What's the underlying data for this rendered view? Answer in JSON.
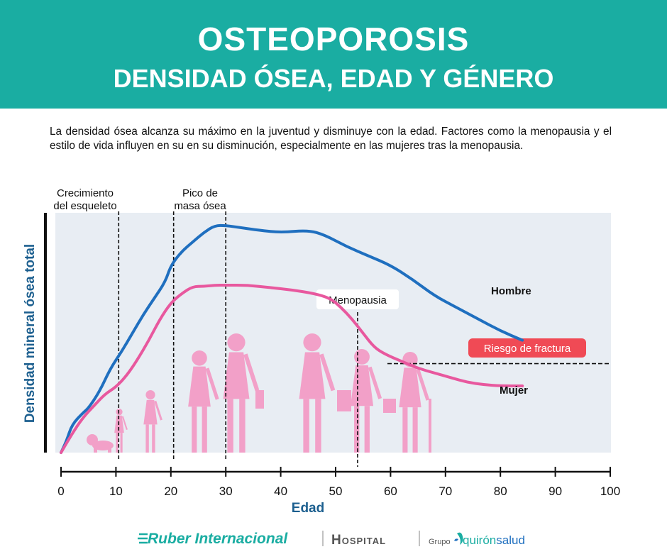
{
  "header": {
    "title": "OSTEOPOROSIS",
    "subtitle": "DENSIDAD ÓSEA, EDAD Y GÉNERO"
  },
  "intro": "La densidad ósea alcanza su máximo en la juventud y disminuye con la edad. Factores como la menopausia y el estilo de vida influyen en su en su disminución, especialmente en las mujeres tras la menopausia.",
  "colors": {
    "header": "#1aada2",
    "hombre": "#1f6fbf",
    "mujer": "#e8589e",
    "silhouette": "#f2a0c8",
    "risk_badge": "#f04a55",
    "axis_label": "#1c5f8f",
    "plot_bg": "#e8edf3"
  },
  "chart_data": {
    "type": "line",
    "xlabel": "Edad",
    "ylabel": "Densidad mineral ósea total",
    "xlim": [
      0,
      100
    ],
    "x_ticks": [
      0,
      10,
      20,
      30,
      40,
      50,
      60,
      70,
      80,
      90,
      100
    ],
    "y_ticks_shown": false,
    "ylim": [
      0,
      100
    ],
    "series": [
      {
        "name": "Hombre",
        "x": [
          0,
          1,
          2,
          4,
          5,
          7,
          9,
          11,
          13,
          15,
          17,
          19,
          20,
          22,
          24,
          26,
          28,
          30,
          33,
          36,
          40,
          45,
          48,
          52,
          56,
          60,
          64,
          68,
          72,
          76,
          80,
          84
        ],
        "y": [
          0,
          5,
          12,
          17,
          19,
          26,
          36,
          43,
          51,
          59,
          66,
          73,
          80,
          86,
          90,
          94,
          97,
          97,
          96,
          95,
          94,
          95,
          93,
          88,
          84,
          80,
          74,
          67,
          62,
          57,
          52,
          48
        ]
      },
      {
        "name": "Mujer",
        "x": [
          0,
          2,
          4,
          6,
          8,
          10,
          12,
          14,
          16,
          18,
          20,
          22,
          24,
          26,
          28,
          30,
          34,
          38,
          42,
          46,
          49,
          51,
          53,
          55,
          57,
          59,
          62,
          65,
          68,
          71,
          74,
          77,
          80,
          84
        ],
        "y": [
          0,
          8,
          15,
          20,
          25,
          28,
          33,
          40,
          48,
          57,
          64,
          68,
          71,
          71,
          71.5,
          71.5,
          71.5,
          70.5,
          69.5,
          68,
          66,
          62,
          57,
          51,
          45,
          42,
          39,
          36,
          34,
          32,
          30,
          29,
          28.5,
          28.5
        ]
      }
    ],
    "annotations": [
      {
        "text": "Crecimiento del esqueleto",
        "x": 10.5
      },
      {
        "text": "Pico de masa ósea",
        "x": 20.5
      },
      {
        "text": "",
        "x": 30
      },
      {
        "text": "Menopausia",
        "x": 54
      }
    ],
    "threshold": {
      "label": "Riesgo de fractura",
      "y": 38
    },
    "series_labels": {
      "hombre": "Hombre",
      "mujer": "Mujer"
    }
  },
  "footer": {
    "brand": "Ruber Internacional",
    "hospital": "Hospital",
    "grupo": "Grupo",
    "partner_a": "quirón",
    "partner_b": "salud"
  }
}
